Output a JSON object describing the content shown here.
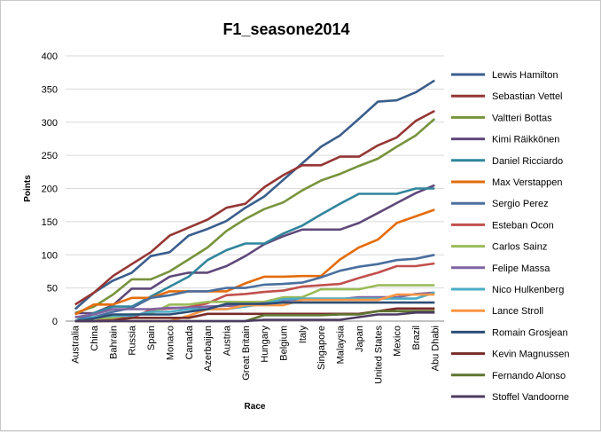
{
  "chart_data": {
    "type": "line",
    "title": "F1_seasone2014",
    "xlabel": "Race",
    "ylabel": "Points",
    "ylim": [
      0,
      400
    ],
    "yticks": [
      "0",
      "50",
      "100",
      "150",
      "200",
      "250",
      "300",
      "350",
      "400"
    ],
    "grid": "horizontal",
    "legend_position": "right",
    "categories": [
      "Australia",
      "China",
      "Bahrain",
      "Russia",
      "Spain",
      "Monaco",
      "Canada",
      "Azerbaijan",
      "Austria",
      "Great Britain",
      "Hungary",
      "Belgium",
      "Italy",
      "Singapore",
      "Malaysia",
      "Japan",
      "United States",
      "Mexico",
      "Brazil",
      "Abu Dhabi"
    ],
    "series": [
      {
        "name": "Lewis Hamilton",
        "color": "#3b5e8c",
        "values": [
          18,
          43,
          61,
          73,
          98,
          104,
          129,
          139,
          151,
          171,
          188,
          213,
          238,
          263,
          280,
          305,
          331,
          333,
          345,
          363
        ]
      },
      {
        "name": "Sebastian Vettel",
        "color": "#953735",
        "values": [
          25,
          43,
          68,
          86,
          104,
          129,
          141,
          153,
          171,
          177,
          202,
          220,
          235,
          235,
          248,
          248,
          265,
          277,
          302,
          317
        ]
      },
      {
        "name": "Valtteri  Bottas",
        "color": "#77933c",
        "values": [
          12,
          22,
          40,
          63,
          63,
          75,
          93,
          111,
          136,
          154,
          169,
          179,
          197,
          212,
          222,
          234,
          245,
          263,
          280,
          305
        ]
      },
      {
        "name": "Kimi Räikkönen",
        "color": "#5f497a",
        "values": [
          12,
          12,
          24,
          49,
          49,
          67,
          73,
          73,
          83,
          98,
          116,
          128,
          138,
          138,
          138,
          148,
          163,
          178,
          193,
          205
        ]
      },
      {
        "name": "Daniel Ricciardo",
        "color": "#31859c",
        "values": [
          0,
          12,
          22,
          22,
          37,
          52,
          67,
          92,
          107,
          117,
          117,
          132,
          144,
          161,
          177,
          192,
          192,
          192,
          200,
          200
        ]
      },
      {
        "name": "Max Verstappen",
        "color": "#e46c0a",
        "values": [
          10,
          25,
          25,
          35,
          35,
          45,
          45,
          45,
          45,
          57,
          67,
          67,
          68,
          68,
          93,
          111,
          123,
          148,
          158,
          168
        ]
      },
      {
        "name": "Sergio Perez",
        "color": "#4a6f9e",
        "values": [
          6,
          6,
          14,
          20,
          35,
          39,
          45,
          45,
          50,
          50,
          55,
          56,
          58,
          66,
          76,
          82,
          86,
          92,
          94,
          100
        ]
      },
      {
        "name": "Esteban Ocon",
        "color": "#c0504d",
        "values": [
          0,
          0,
          4,
          5,
          17,
          19,
          21,
          27,
          39,
          41,
          44,
          46,
          52,
          54,
          56,
          65,
          73,
          83,
          83,
          87
        ]
      },
      {
        "name": "Carlos Sainz",
        "color": "#9bbb59",
        "values": [
          0,
          4,
          5,
          10,
          11,
          25,
          25,
          29,
          29,
          29,
          29,
          36,
          36,
          48,
          48,
          48,
          54,
          54,
          54,
          54
        ]
      },
      {
        "name": "Felipe Massa",
        "color": "#8064a2",
        "values": [
          6,
          10,
          18,
          18,
          18,
          20,
          20,
          22,
          23,
          24,
          27,
          31,
          33,
          33,
          33,
          36,
          36,
          36,
          41,
          43
        ]
      },
      {
        "name": "Nico Hulkenberg",
        "color": "#4bacc6",
        "values": [
          0,
          6,
          8,
          8,
          14,
          14,
          18,
          18,
          18,
          22,
          26,
          33,
          34,
          34,
          34,
          34,
          34,
          34,
          34,
          43
        ]
      },
      {
        "name": "Lance Stroll",
        "color": "#f79646",
        "values": [
          0,
          0,
          0,
          0,
          0,
          0,
          8,
          18,
          18,
          24,
          24,
          24,
          32,
          32,
          32,
          32,
          32,
          40,
          40,
          40
        ]
      },
      {
        "name": "Romain Grosjean",
        "color": "#2c4d75",
        "values": [
          0,
          4,
          10,
          10,
          10,
          10,
          14,
          18,
          26,
          26,
          26,
          28,
          28,
          28,
          28,
          28,
          28,
          28,
          28,
          28
        ]
      },
      {
        "name": "Kevin Magnussen",
        "color": "#772c2a",
        "values": [
          0,
          0,
          1,
          5,
          5,
          5,
          5,
          11,
          11,
          11,
          11,
          11,
          11,
          11,
          11,
          11,
          15,
          19,
          19,
          19
        ]
      },
      {
        "name": "Fernando Alonso",
        "color": "#5f7530",
        "values": [
          0,
          0,
          0,
          0,
          0,
          0,
          0,
          0,
          0,
          0,
          9,
          9,
          9,
          9,
          10,
          10,
          15,
          15,
          15,
          15
        ]
      },
      {
        "name": "Stoffel Vandoorne",
        "color": "#4d3b62",
        "values": [
          0,
          0,
          0,
          0,
          0,
          0,
          0,
          0,
          0,
          0,
          2,
          2,
          2,
          2,
          2,
          6,
          10,
          10,
          13,
          13
        ]
      }
    ]
  }
}
